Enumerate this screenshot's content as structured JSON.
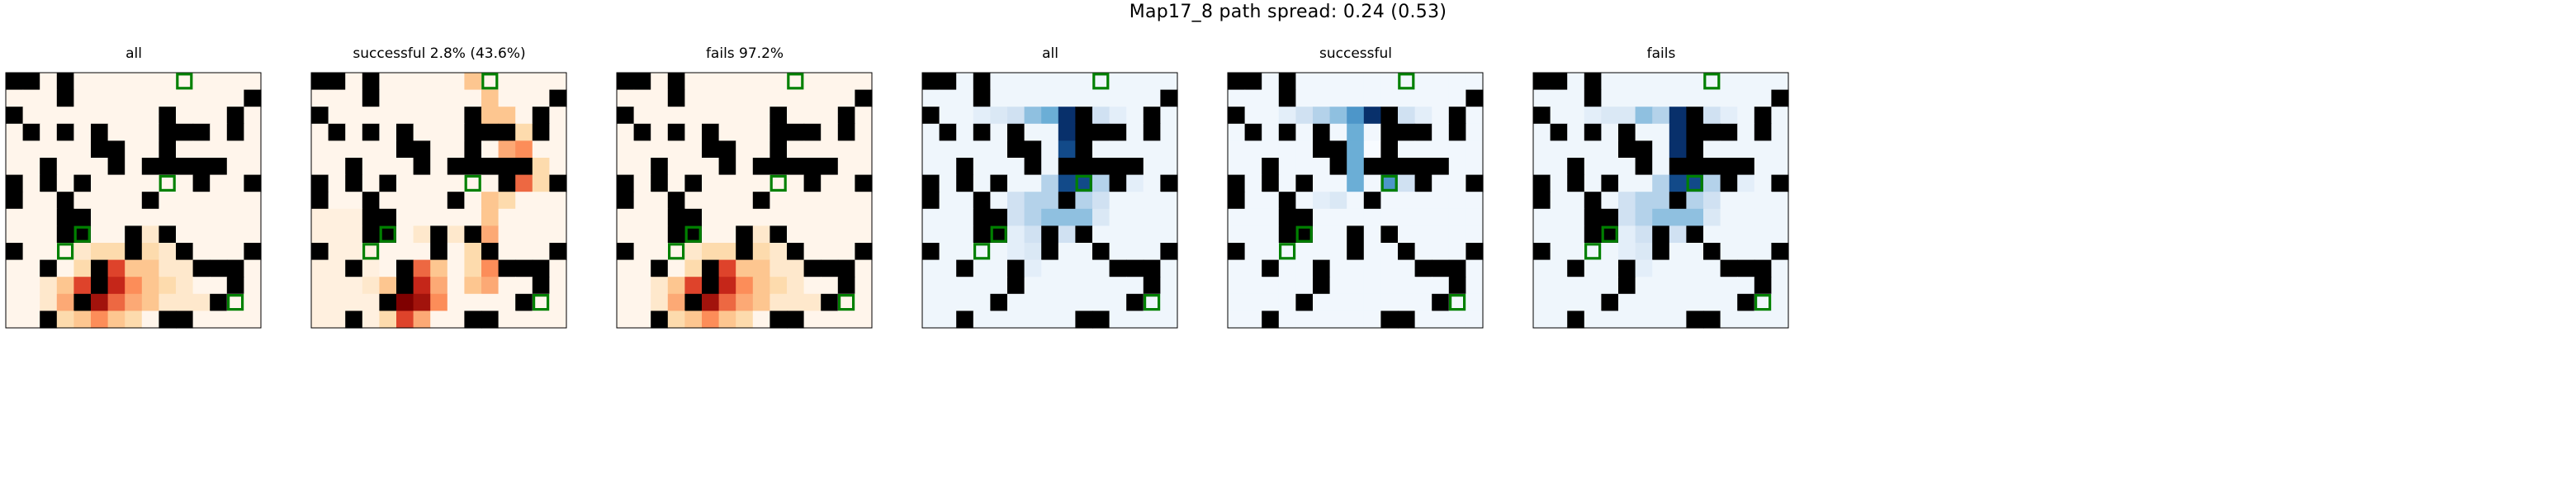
{
  "title": "Map17_8 path spread: 0.24 (0.53)",
  "colors": {
    "wall": "#000000",
    "goal": "#008000",
    "frame": "#000000"
  },
  "chart_data": [
    {
      "type": "heatmap",
      "title": "all",
      "cmap": "OrRd",
      "grid_size": [
        15,
        15
      ],
      "vmax": 10,
      "cells": [
        [
          0,
          0,
          0,
          1,
          2,
          1,
          1,
          1,
          1,
          0,
          0,
          0,
          0,
          0,
          0
        ],
        [
          0,
          0,
          0,
          0,
          2,
          6,
          8,
          6,
          3,
          3,
          1,
          1,
          0,
          0,
          0
        ],
        [
          0,
          1,
          2,
          5,
          8,
          10,
          7,
          3,
          2,
          2,
          1,
          1,
          0,
          0,
          0
        ],
        [
          0,
          0,
          0,
          1,
          4,
          6,
          4,
          2,
          1,
          0,
          0,
          0,
          0,
          0,
          0
        ]
      ],
      "cell_rows_from": 10
    },
    {
      "type": "heatmap",
      "title": "successful 2.8% (43.6%)",
      "cmap": "OrRd",
      "grid_size": [
        15,
        15
      ],
      "vmax": 10,
      "cells": [
        [
          0,
          0,
          0,
          0,
          0,
          0,
          0,
          0,
          0,
          0,
          0,
          0,
          0,
          0,
          0
        ],
        [
          0,
          0,
          0,
          0,
          0,
          0,
          0,
          0,
          0,
          0,
          0,
          0,
          0,
          0,
          0
        ],
        [
          0,
          0,
          0,
          0,
          0,
          0,
          0,
          0,
          0,
          0,
          0,
          0,
          0,
          0,
          0
        ]
      ],
      "cell_rows_from": 0
    },
    {
      "type": "heatmap",
      "title": "fails 97.2%",
      "cmap": "OrRd",
      "grid_size": [
        15,
        15
      ],
      "vmax": 10,
      "cells": [
        [
          0,
          0,
          0,
          1,
          2,
          1,
          1,
          1,
          1,
          0,
          0,
          0,
          0,
          0,
          0
        ],
        [
          0,
          0,
          0,
          0,
          2,
          6,
          8,
          6,
          3,
          3,
          1,
          1,
          0,
          0,
          0
        ],
        [
          0,
          1,
          2,
          5,
          8,
          10,
          7,
          3,
          2,
          2,
          1,
          1,
          0,
          0,
          0
        ],
        [
          0,
          0,
          0,
          1,
          4,
          6,
          4,
          2,
          1,
          0,
          0,
          0,
          0,
          0,
          0
        ]
      ],
      "cell_rows_from": 10
    },
    {
      "type": "heatmap",
      "title": "all",
      "cmap": "Blues",
      "grid_size": [
        15,
        15
      ],
      "vmax": 10,
      "cells": [
        [
          0,
          0,
          0,
          0,
          0,
          0,
          0,
          0,
          0,
          0,
          0,
          0,
          0,
          0,
          0
        ],
        [
          0,
          0,
          0,
          0,
          0,
          0,
          0,
          0,
          0,
          0,
          0,
          0,
          0,
          0,
          0
        ]
      ],
      "cell_rows_from": 0
    },
    {
      "type": "heatmap",
      "title": "successful",
      "cmap": "Blues",
      "grid_size": [
        15,
        15
      ],
      "vmax": 10,
      "cells": [
        [
          0,
          0,
          0,
          0,
          0,
          0,
          0,
          0,
          0,
          0,
          0,
          0,
          0,
          0,
          0
        ]
      ],
      "cell_rows_from": 0
    },
    {
      "type": "heatmap",
      "title": "fails",
      "cmap": "Blues",
      "grid_size": [
        15,
        15
      ],
      "vmax": 10,
      "cells": [
        [
          0,
          0,
          0,
          0,
          0,
          0,
          0,
          0,
          0,
          0,
          0,
          0,
          0,
          0,
          0
        ]
      ],
      "cell_rows_from": 0
    }
  ],
  "maze": {
    "walls": [
      [
        0,
        0
      ],
      [
        1,
        0
      ],
      [
        3,
        0
      ],
      [
        3,
        1
      ],
      [
        14,
        1
      ],
      [
        0,
        2
      ],
      [
        9,
        2
      ],
      [
        13,
        2
      ],
      [
        1,
        3
      ],
      [
        3,
        3
      ],
      [
        5,
        3
      ],
      [
        9,
        3
      ],
      [
        10,
        3
      ],
      [
        11,
        3
      ],
      [
        13,
        3
      ],
      [
        5,
        4
      ],
      [
        6,
        4
      ],
      [
        9,
        4
      ],
      [
        2,
        5
      ],
      [
        6,
        5
      ],
      [
        8,
        5
      ],
      [
        9,
        5
      ],
      [
        10,
        5
      ],
      [
        11,
        5
      ],
      [
        12,
        5
      ],
      [
        0,
        6
      ],
      [
        2,
        6
      ],
      [
        4,
        6
      ],
      [
        11,
        6
      ],
      [
        14,
        6
      ],
      [
        0,
        7
      ],
      [
        3,
        7
      ],
      [
        8,
        7
      ],
      [
        3,
        8
      ],
      [
        4,
        8
      ],
      [
        3,
        9
      ],
      [
        4,
        9
      ],
      [
        7,
        9
      ],
      [
        9,
        9
      ],
      [
        0,
        10
      ],
      [
        7,
        10
      ],
      [
        10,
        10
      ],
      [
        14,
        10
      ],
      [
        2,
        11
      ],
      [
        5,
        11
      ],
      [
        11,
        11
      ],
      [
        12,
        11
      ],
      [
        13,
        11
      ],
      [
        5,
        12
      ],
      [
        13,
        12
      ],
      [
        4,
        13
      ],
      [
        12,
        13
      ],
      [
        2,
        14
      ],
      [
        9,
        14
      ],
      [
        10,
        14
      ]
    ],
    "goals": [
      [
        10,
        0
      ],
      [
        9,
        6
      ],
      [
        4,
        9
      ],
      [
        3,
        10
      ],
      [
        13,
        13
      ]
    ]
  }
}
